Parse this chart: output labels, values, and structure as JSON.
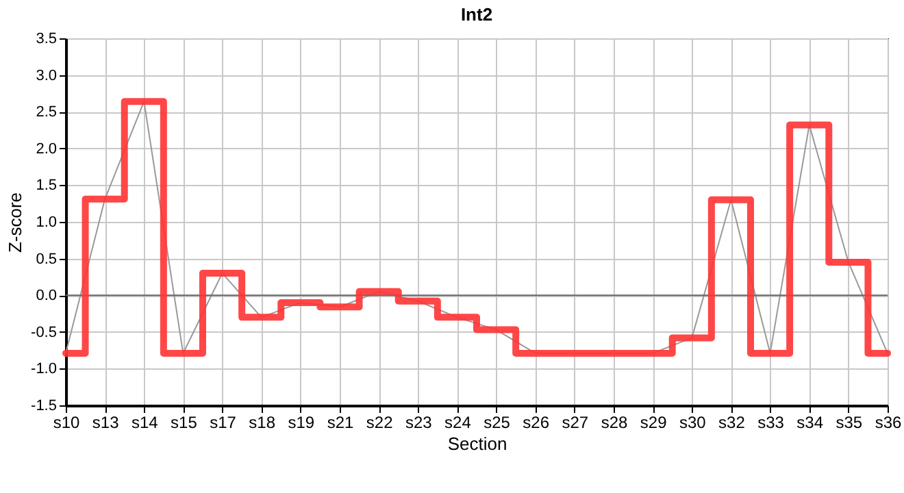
{
  "chart_data": {
    "type": "line",
    "title": "Int2",
    "xlabel": "Section",
    "ylabel": "Z-score",
    "categories": [
      "s10",
      "s13",
      "s14",
      "s15",
      "s17",
      "s18",
      "s19",
      "s21",
      "s22",
      "s23",
      "s24",
      "s25",
      "s26",
      "s27",
      "s28",
      "s29",
      "s30",
      "s32",
      "s33",
      "s34",
      "s35",
      "s36"
    ],
    "series": [
      {
        "color": "#999999",
        "values": [
          -0.79,
          1.31,
          2.64,
          -0.79,
          0.3,
          -0.3,
          -0.1,
          -0.16,
          0.05,
          -0.08,
          -0.3,
          -0.47,
          -0.79,
          -0.79,
          -0.79,
          -0.79,
          -0.58,
          1.3,
          -0.79,
          2.32,
          0.45,
          -0.79
        ]
      },
      {
        "type": "step",
        "color": "#ff3333",
        "values": [
          -0.79,
          1.31,
          2.64,
          -0.79,
          0.3,
          -0.3,
          -0.1,
          -0.16,
          0.05,
          -0.08,
          -0.3,
          -0.47,
          -0.79,
          -0.79,
          -0.79,
          -0.79,
          -0.58,
          1.3,
          -0.79,
          2.32,
          0.45,
          -0.79
        ]
      }
    ],
    "ylim": [
      -1.5,
      3.5
    ],
    "yticks": [
      -1.5,
      {
        "value": -1,
        "label": "-1.0"
      },
      -0.5,
      {
        "value": 0,
        "label": "0.0"
      },
      0.5,
      {
        "value": 1,
        "label": "1.0"
      },
      1.5,
      {
        "value": 2,
        "label": "2.0"
      },
      2.5,
      {
        "value": 3,
        "label": "3.0"
      },
      3.5
    ],
    "ref_lines": [
      {
        "axis": "y",
        "value": 0,
        "color": "#666666"
      }
    ],
    "grid": true
  }
}
